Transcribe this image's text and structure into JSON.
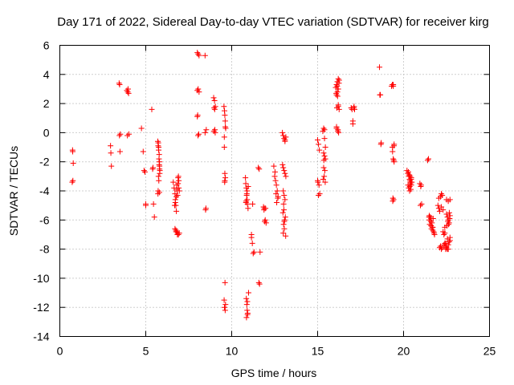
{
  "chart_data": {
    "type": "scatter",
    "title": "Day 171 of 2022, Sidereal Day-to-day VTEC variation (SDTVAR) for receiver kirg",
    "xlabel": "GPS time / hours",
    "ylabel": "SDTVAR / TECUs",
    "xlim": [
      0,
      25
    ],
    "ylim": [
      -14,
      6
    ],
    "xticks": [
      0,
      5,
      10,
      15,
      20,
      25
    ],
    "yticks": [
      -14,
      -12,
      -10,
      -8,
      -6,
      -4,
      -2,
      0,
      2,
      4,
      6
    ],
    "grid": true,
    "marker": "+",
    "color": "#ff0000",
    "series": [
      {
        "name": "SDTVAR",
        "x": [
          0.75,
          0.78,
          0.72,
          0.76,
          0.74,
          2.95,
          2.97,
          3.0,
          3.45,
          3.48,
          3.5,
          3.52,
          3.47,
          3.9,
          3.95,
          4.0,
          4.02,
          3.93,
          3.97,
          4.75,
          4.85,
          4.9,
          4.95,
          5.0,
          5.0,
          5.35,
          5.4,
          5.45,
          5.5,
          5.42,
          5.7,
          5.72,
          5.75,
          5.78,
          5.8,
          5.8,
          5.82,
          5.74,
          5.76,
          5.79,
          5.71,
          5.81,
          5.77,
          5.73,
          5.75,
          5.78,
          5.8,
          5.72,
          6.6,
          6.65,
          6.7,
          6.72,
          6.75,
          6.78,
          6.8,
          6.82,
          6.85,
          6.88,
          6.9,
          6.92,
          6.95,
          6.7,
          6.75,
          6.8,
          6.85,
          6.9,
          6.95,
          6.68,
          6.72,
          6.78,
          6.82,
          6.88,
          6.92,
          6.76,
          6.84,
          8.0,
          8.05,
          8.1,
          8.0,
          8.05,
          8.1,
          8.0,
          8.02,
          8.08,
          8.04,
          8.45,
          8.5,
          8.45,
          8.52,
          8.48,
          8.95,
          9.0,
          9.05,
          8.98,
          9.02,
          9.04,
          8.96,
          9.01,
          9.55,
          9.58,
          9.6,
          9.62,
          9.65,
          9.57,
          9.6,
          9.63,
          9.59,
          9.61,
          9.56,
          9.64,
          9.58,
          9.62,
          9.6,
          9.57,
          9.63,
          10.8,
          10.82,
          10.85,
          10.88,
          10.9,
          10.92,
          10.95,
          10.98,
          10.85,
          10.88,
          10.9,
          10.92,
          10.86,
          10.93,
          10.84,
          10.96,
          10.9,
          10.87,
          10.91,
          10.83,
          11.15,
          11.2,
          11.25,
          11.3,
          11.15,
          11.22,
          11.55,
          11.6,
          11.65,
          11.58,
          11.62,
          11.85,
          11.9,
          11.95,
          12.0,
          11.88,
          11.92,
          11.97,
          12.45,
          12.5,
          12.55,
          12.6,
          12.65,
          12.7,
          12.52,
          12.58,
          12.62,
          12.68,
          12.95,
          13.0,
          13.05,
          13.1,
          13.15,
          13.0,
          13.05,
          13.1,
          13.15,
          13.0,
          13.05,
          13.1,
          12.98,
          13.12,
          13.08,
          13.02,
          13.06,
          13.0,
          13.14,
          13.04,
          12.96,
          13.1,
          13.06,
          13.02,
          15.0,
          15.05,
          15.1,
          15.0,
          15.08,
          15.12,
          15.05,
          15.02,
          15.3,
          15.35,
          15.4,
          15.45,
          15.35,
          15.4,
          15.45,
          15.35,
          15.42,
          15.38,
          15.32,
          15.44,
          15.36,
          15.4,
          16.05,
          16.1,
          16.15,
          16.2,
          16.25,
          16.1,
          16.15,
          16.2,
          16.25,
          16.1,
          16.18,
          16.22,
          16.12,
          16.2,
          16.08,
          16.16,
          16.24,
          16.14,
          16.2,
          16.1,
          16.18,
          16.95,
          17.0,
          17.05,
          17.1,
          17.15,
          17.05,
          17.12,
          18.6,
          18.65,
          18.7,
          18.68,
          18.62,
          19.3,
          19.35,
          19.4,
          19.45,
          19.35,
          19.4,
          19.45,
          19.38,
          19.42,
          19.36,
          19.44,
          19.4,
          19.37,
          19.43,
          20.2,
          20.25,
          20.3,
          20.35,
          20.4,
          20.45,
          20.3,
          20.35,
          20.4,
          20.45,
          20.28,
          20.38,
          20.42,
          20.32,
          20.36,
          20.48,
          20.26,
          20.34,
          20.44,
          20.39,
          20.95,
          21.0,
          21.05,
          20.98,
          21.02,
          21.4,
          21.45,
          21.5,
          21.55,
          21.6,
          21.65,
          21.7,
          21.75,
          21.8,
          21.5,
          21.6,
          21.7,
          21.48,
          21.58,
          21.68,
          21.78,
          21.52,
          21.62,
          21.72,
          22.0,
          22.05,
          22.1,
          22.15,
          22.2,
          22.25,
          22.3,
          22.35,
          22.4,
          22.45,
          22.5,
          22.55,
          22.6,
          22.65,
          22.7,
          22.2,
          22.3,
          22.4,
          22.5,
          22.6,
          22.7,
          22.15,
          22.25,
          22.35,
          22.45,
          22.55,
          22.65,
          22.05,
          22.5,
          22.55,
          22.6,
          22.65,
          22.7,
          22.5,
          22.6,
          22.7,
          22.4,
          22.35,
          22.45,
          22.62,
          22.68,
          22.58,
          22.52,
          22.66,
          22.1,
          22.2
        ],
        "y": [
          -1.3,
          -2.1,
          -3.4,
          -3.3,
          -1.2,
          -0.9,
          -1.4,
          -2.3,
          3.4,
          3.3,
          -1.3,
          -0.1,
          -0.2,
          2.9,
          2.8,
          2.7,
          -0.1,
          -0.2,
          3.0,
          0.3,
          -1.3,
          -2.6,
          -2.7,
          -4.9,
          -5.0,
          1.6,
          -2.5,
          -4.9,
          -5.8,
          -2.4,
          -0.6,
          -0.9,
          -1.2,
          -1.5,
          -2.0,
          -2.3,
          -2.6,
          -3.0,
          -3.3,
          -4.1,
          -4.2,
          -2.8,
          -1.8,
          -0.7,
          -1.0,
          -2.2,
          -2.5,
          -4.0,
          -3.4,
          -3.8,
          -4.2,
          -4.6,
          -5.0,
          -5.4,
          -3.6,
          -3.9,
          -4.3,
          -3.1,
          -3.0,
          -3.3,
          -4.0,
          -6.6,
          -6.7,
          -6.8,
          -6.9,
          -7.0,
          -6.9,
          -5.0,
          -4.8,
          -4.4,
          -4.0,
          -3.5,
          -3.8,
          -6.8,
          -7.0,
          5.5,
          5.4,
          5.3,
          2.9,
          3.0,
          2.8,
          1.1,
          1.2,
          -0.1,
          -0.2,
          5.3,
          -5.2,
          0.0,
          0.2,
          -5.3,
          2.4,
          2.2,
          1.8,
          1.7,
          0.2,
          0.0,
          0.1,
          1.6,
          1.8,
          1.5,
          1.2,
          0.8,
          0.3,
          -0.3,
          -2.8,
          -3.1,
          -3.4,
          -10.3,
          -11.5,
          -11.8,
          -12.0,
          -12.2,
          -3.3,
          -1.0,
          0.4,
          -3.1,
          -3.5,
          -3.8,
          -4.2,
          -4.6,
          -4.9,
          -5.2,
          -11.0,
          -11.4,
          -11.8,
          -12.2,
          -12.5,
          -12.7,
          -12.4,
          -4.7,
          -3.7,
          -4.0,
          -4.3,
          -11.6,
          -4.8,
          -7.0,
          -7.6,
          -8.3,
          -8.2,
          -7.2,
          -4.9,
          -2.4,
          -2.5,
          -8.2,
          -10.3,
          -10.4,
          -5.1,
          -5.2,
          -6.0,
          -6.2,
          -5.3,
          -6.1,
          -5.2,
          -2.3,
          -3.0,
          -3.3,
          -3.6,
          -4.0,
          -4.4,
          -2.7,
          -4.2,
          -4.8,
          -4.5,
          0.0,
          -0.2,
          -0.4,
          -0.6,
          -0.3,
          -2.4,
          -2.6,
          -2.8,
          -3.0,
          -4.0,
          -4.3,
          -4.6,
          -5.5,
          -5.8,
          -6.0,
          -6.3,
          -6.6,
          -6.9,
          -7.1,
          -5.3,
          -2.2,
          -0.5,
          -6.1,
          -4.9,
          -0.5,
          -0.8,
          -1.2,
          -3.3,
          -3.6,
          -4.2,
          -4.3,
          -3.4,
          0.1,
          0.3,
          -0.4,
          -1.0,
          -1.4,
          -1.6,
          -1.8,
          -2.4,
          -2.6,
          -3.0,
          -3.2,
          -3.4,
          -1.9,
          0.2,
          3.1,
          3.3,
          3.5,
          3.7,
          3.6,
          2.6,
          2.8,
          1.8,
          1.6,
          0.4,
          0.2,
          0.0,
          1.7,
          1.9,
          2.7,
          2.5,
          3.4,
          3.2,
          3.0,
          0.3,
          0.1,
          1.7,
          1.6,
          0.8,
          1.7,
          1.6,
          0.6,
          1.8,
          4.5,
          2.6,
          -0.7,
          -0.8,
          2.6,
          3.2,
          3.3,
          3.2,
          -0.8,
          -1.0,
          -1.8,
          -2.0,
          -4.5,
          -4.6,
          -1.3,
          -0.9,
          3.3,
          -4.7,
          -1.9,
          -2.6,
          -2.8,
          -3.0,
          -3.2,
          -3.4,
          -3.6,
          -3.8,
          -4.0,
          -3.5,
          -3.1,
          -2.7,
          -3.3,
          -3.9,
          -2.9,
          -3.7,
          -3.4,
          -3.6,
          -2.9,
          -3.2,
          -3.0,
          -3.5,
          -3.7,
          -4.9,
          -5.0,
          -3.6,
          -1.9,
          -1.8,
          -5.7,
          -5.8,
          -5.9,
          -6.2,
          -6.5,
          -6.8,
          -7.0,
          -6.0,
          -6.4,
          -6.7,
          -5.8,
          -6.1,
          -6.5,
          -6.9,
          -6.3,
          -6.6,
          -5.9,
          -5.0,
          -5.2,
          -5.4,
          -4.4,
          -4.2,
          -4.3,
          -6.8,
          -7.0,
          -7.6,
          -7.8,
          -7.9,
          -8.0,
          -7.7,
          -7.5,
          -7.2,
          -5.1,
          -5.3,
          -6.9,
          -7.8,
          -8.0,
          -7.4,
          -7.8,
          -7.9,
          -7.7,
          -7.6,
          -7.3,
          -7.5,
          -4.5,
          -5.6,
          -5.8,
          -6.0,
          -6.2,
          -5.7,
          -4.6,
          -4.7,
          -4.6,
          -6.5,
          -7.8,
          -8.0,
          -6.3,
          -5.9,
          -6.1,
          -6.4,
          -5.5,
          -7.9,
          -8.0
        ]
      }
    ]
  }
}
